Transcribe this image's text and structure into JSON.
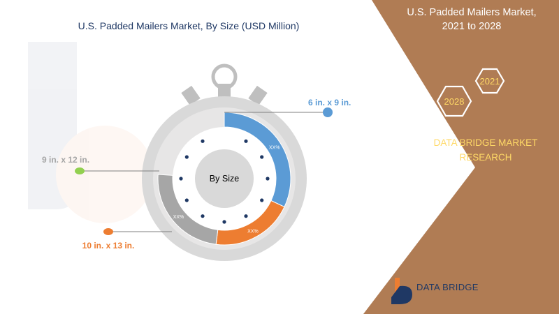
{
  "chart": {
    "title": "U.S. Padded Mailers Market, By Size (USD Million)",
    "center_label": "By Size"
  },
  "side_panel": {
    "title_line1": "U.S. Padded Mailers Market,",
    "title_line2": "2021 to 2028",
    "year_1": "2021",
    "year_2": "2028",
    "brand_line1": "DATA BRIDGE MARKET",
    "brand_line2": "RESEARCH"
  },
  "footer": {
    "logo_text": "DATA BRIDGE"
  },
  "colors": {
    "blue": "#5b9bd5",
    "orange": "#ed7d31",
    "gray": "#a6a6a6",
    "panel": "#b07c54",
    "gold": "#ffd966",
    "navy": "#1f3864"
  },
  "chart_data": {
    "type": "pie",
    "title": "U.S. Padded Mailers Market, By Size (USD Million)",
    "categories": [
      "6 in. x 9 in.",
      "9 in. x 12 in.",
      "10 in. x 13 in."
    ],
    "values": [
      0.32,
      0.24,
      0.2
    ],
    "value_labels": [
      "XX%",
      "XX%",
      "XX%"
    ],
    "colors": [
      "#5b9bd5",
      "#a6a6a6",
      "#ed7d31"
    ]
  }
}
